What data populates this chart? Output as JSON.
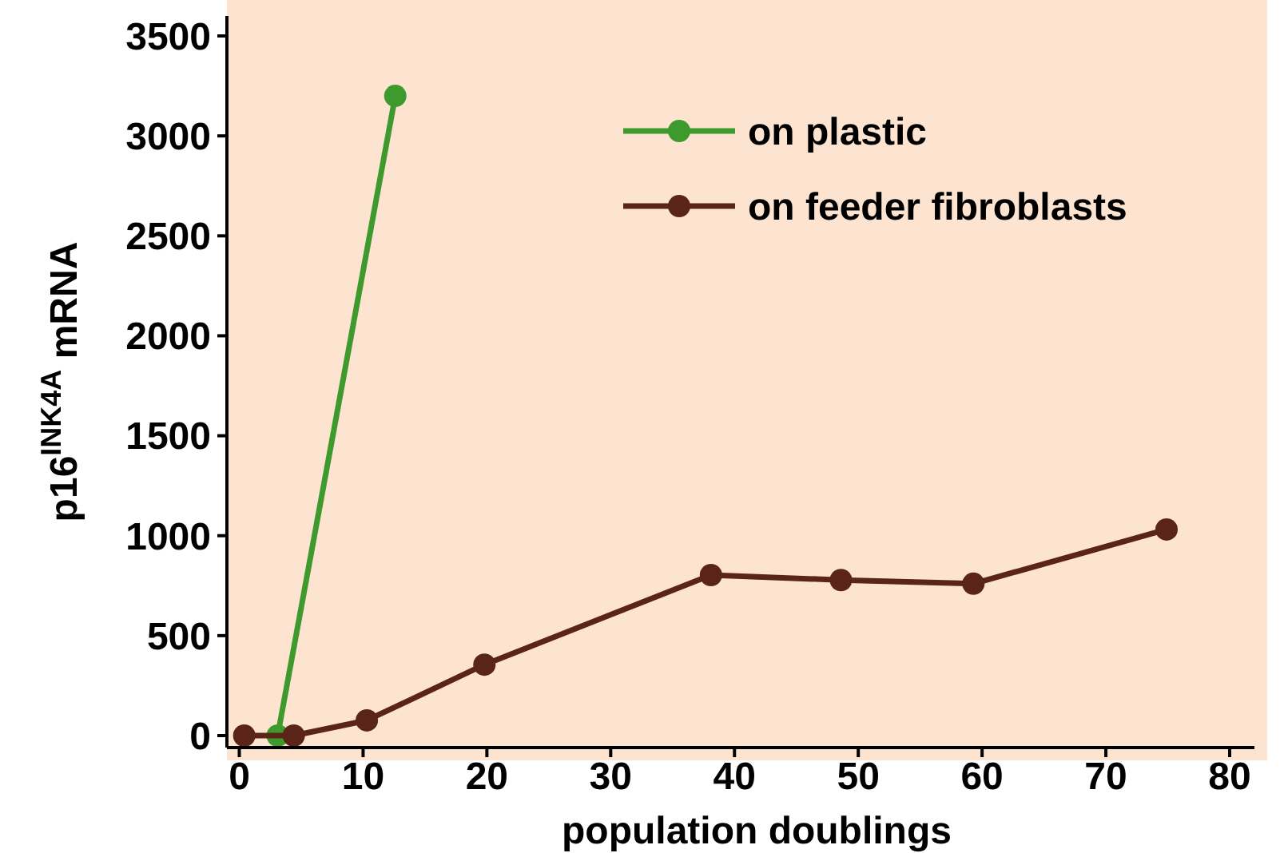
{
  "chart_data": {
    "type": "line",
    "xlabel": "population doublings",
    "ylabel": "p16$^{INK4A}$ mRNA",
    "xlim": [
      -1,
      82
    ],
    "ylim": [
      -60,
      3600
    ],
    "xticks": [
      0,
      10,
      20,
      30,
      40,
      50,
      60,
      70,
      80
    ],
    "yticks": [
      0,
      500,
      1000,
      1500,
      2000,
      2500,
      3000,
      3500
    ],
    "marker": "circle",
    "legend": "top right",
    "grid": false,
    "series": [
      {
        "name": "on plastic",
        "color": "#3f9a2e",
        "x": [
          3.1,
          12.6
        ],
        "values": [
          0,
          3200
        ]
      },
      {
        "name": "on feeder fibroblasts",
        "color": "#5a2418",
        "x": [
          0.4,
          4.4,
          10.3,
          19.8,
          38.1,
          48.6,
          59.3,
          74.9
        ],
        "values": [
          0,
          0,
          76,
          355,
          803,
          778,
          760,
          1031
        ]
      }
    ]
  }
}
